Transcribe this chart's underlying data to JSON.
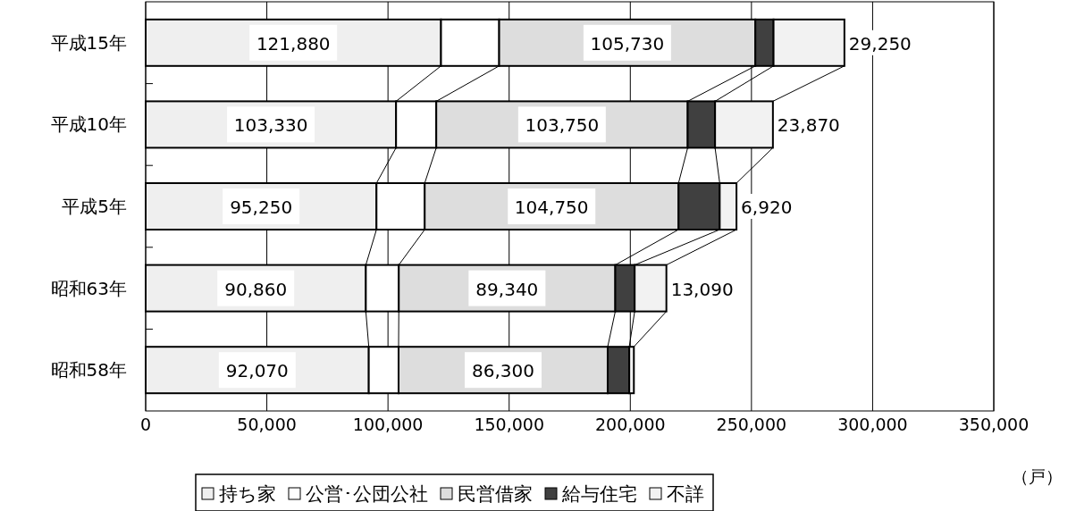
{
  "chart_data": {
    "type": "bar",
    "orientation": "horizontal",
    "stacked": true,
    "categories": [
      "平成15年",
      "平成10年",
      "平成5年",
      "昭和63年",
      "昭和58年"
    ],
    "series": [
      {
        "name": "持ち家",
        "color": "#efefef",
        "values": [
          121880,
          103330,
          95250,
          90860,
          92070
        ],
        "value_labels": [
          "121,880",
          "103,330",
          "95,250",
          "90,860",
          "92,070"
        ]
      },
      {
        "name": "公営･公団公社",
        "color": "#ffffff",
        "values": [
          24000,
          16600,
          19900,
          13600,
          12300
        ]
      },
      {
        "name": "民営借家",
        "color": "#dddddd",
        "values": [
          105730,
          103750,
          104750,
          89340,
          86300
        ],
        "value_labels": [
          "105,730",
          "103,750",
          "104,750",
          "89,340",
          "86,300"
        ]
      },
      {
        "name": "給与住宅",
        "color": "#404040",
        "values": [
          7500,
          11300,
          17000,
          8000,
          8900
        ]
      },
      {
        "name": "不詳",
        "color": "#f2f2f2",
        "values": [
          29250,
          23870,
          6920,
          13090,
          1900
        ],
        "value_labels": [
          "29,250",
          "23,870",
          "6,920",
          "13,090",
          null
        ]
      }
    ],
    "xlim": [
      0,
      350000
    ],
    "xticks": [
      0,
      {
        "value": 50000,
        "label": "50,000"
      },
      {
        "value": 100000,
        "label": "100,000"
      },
      {
        "value": 150000,
        "label": "150,000"
      },
      {
        "value": 200000,
        "label": "200,000"
      },
      {
        "value": 250000,
        "label": "250,000"
      },
      {
        "value": 300000,
        "label": "300,000"
      },
      {
        "value": 350000,
        "label": "350,000"
      }
    ],
    "xlabel": "（戸）",
    "grid": "x",
    "legend": "bottom"
  }
}
